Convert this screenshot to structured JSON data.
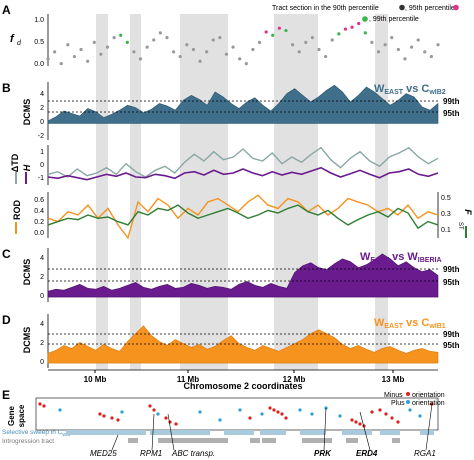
{
  "panels": {
    "A": {
      "label": "A",
      "ylabel": "f",
      "ylabel_sup": "^",
      "ylabel_sub": "d",
      "yticks": [
        "0.0",
        "0.5",
        "1.0"
      ],
      "legend_text_1": "Tract section in the 90th percentile",
      "legend_text_2": ", 95th percentile",
      "legend_text_3": ", 99th percentile"
    },
    "B": {
      "label": "B",
      "ylabel": "DCMS",
      "yticks": [
        "-2",
        "0",
        "2",
        "4"
      ],
      "title_main_1": "W",
      "title_sub_1": "EAST",
      "title_mid": " vs C",
      "title_sub_2": "wIB2",
      "p99": "99th",
      "p95": "95th"
    },
    "TD": {
      "ylabel_1": "ΔTD",
      "ylabel_2": "H",
      "yticks": [
        "-1",
        "0",
        "1"
      ]
    },
    "ROD": {
      "ylabel": "ROD",
      "yticks": [
        "0.0",
        "0.2",
        "0.4",
        "0.6"
      ],
      "y2label": "F",
      "y2label_sub": "ST",
      "y2ticks": [
        "0.1",
        "0.3",
        "0.5"
      ]
    },
    "C": {
      "label": "C",
      "ylabel": "DCMS",
      "yticks": [
        "0",
        "2",
        "4"
      ],
      "title_main_1": "W",
      "title_sub_1": "EAST",
      "title_mid": " vs W",
      "title_sub_2": "IBERIA",
      "p99": "99th",
      "p95": "95th"
    },
    "D": {
      "label": "D",
      "ylabel": "DCMS",
      "yticks": [
        "0",
        "2",
        "4"
      ],
      "title_main_1": "W",
      "title_sub_1": "EAST",
      "title_mid": " vs C",
      "title_sub_2": "wIB1",
      "p99": "99th",
      "p95": "95th"
    },
    "E": {
      "label": "E",
      "ylabel_1": "Gene",
      "ylabel_2": "space",
      "minus_label": "Minus",
      "plus_label": "Plus",
      "orientation_label": "orientation",
      "sweep_label_1": "Selective sweep in C",
      "sweep_label_sub": "wIB",
      "introgression_label": "Introgression tract",
      "genes": [
        "MED25",
        "RPM1",
        "ABC transp.",
        "PRK",
        "ERD4",
        "RGA1"
      ]
    }
  },
  "xaxis": {
    "title": "Chromosome 2 coordinates",
    "ticks": [
      "10 Mb",
      "11 Mb",
      "12 Mb",
      "13 Mb"
    ]
  },
  "colors": {
    "blue": "#3f6f8a",
    "purple": "#6a1b8e",
    "orange": "#f5931e",
    "green": "#2e7d32",
    "grey_line": "#8aa8a6",
    "pink": "#e0338a",
    "dot_green": "#3bb44a",
    "band": "#dcdcdc"
  },
  "chart_data": [
    {
      "type": "scatter",
      "panel": "A",
      "ylabel": "f̂d",
      "ylim": [
        0,
        1.1
      ],
      "series": [
        {
          "values": [
            0.15,
            0.3,
            0.05,
            0.45,
            0.2,
            0.35,
            0.1,
            0.5,
            0.25,
            0.4,
            0.6,
            0.65,
            0.5,
            0.3,
            0.15,
            0.4,
            0.55,
            0.7,
            0.6,
            0.3,
            0.2,
            0.45,
            0.35,
            0.1,
            0.3,
            0.55,
            0.6,
            0.25,
            0.4,
            0.15,
            0.05,
            0.35,
            0.5,
            0.72,
            0.65,
            0.8,
            0.75,
            0.45,
            0.3,
            0.5,
            0.6,
            0.35,
            0.2,
            0.55,
            0.68,
            0.78,
            0.82,
            0.9,
            0.7,
            0.5,
            0.3,
            0.45,
            0.6,
            0.35,
            0.15,
            0.4,
            0.55,
            0.3,
            0.2,
            0.45
          ]
        }
      ]
    },
    {
      "type": "area",
      "panel": "B",
      "ylim": [
        -2,
        5
      ],
      "series": [
        {
          "name": "WEAST vs CwIB2",
          "values": [
            0.3,
            0.8,
            1.5,
            1.2,
            0.9,
            1.8,
            1.4,
            0.7,
            1.1,
            1.6,
            2.2,
            1.9,
            1.3,
            1.7,
            2.4,
            2.1,
            1.6,
            2.8,
            3.4,
            2.9,
            2.2,
            3.8,
            3.2,
            2.4,
            1.8,
            2.6,
            3.1,
            2.2,
            1.5,
            2.4,
            3.6,
            4.2,
            3.4,
            2.6,
            3.2,
            4.0,
            4.6,
            3.8,
            2.6,
            3.4,
            4.4,
            3.8,
            3.0,
            2.2,
            2.8,
            3.6,
            3.2,
            2.0,
            1.6,
            2.4
          ]
        }
      ]
    },
    {
      "type": "line",
      "panel": "DeltaTD / H",
      "ylim": [
        -1.5,
        1.5
      ],
      "series": [
        {
          "name": "ΔTD",
          "values": [
            -0.7,
            -0.5,
            -0.9,
            -0.3,
            -0.8,
            -0.6,
            -0.2,
            -0.7,
            0.1,
            -0.5,
            -0.9,
            -0.4,
            -0.1,
            -0.6,
            0.2,
            0.8,
            0.3,
            1.0,
            0.4,
            0.6,
            1.2,
            0.5,
            0.3,
            0.9,
            0.1,
            0.6,
            0.2,
            0.8,
            1.3,
            0.4,
            -0.2,
            0.5,
            1.0,
            0.3,
            -0.1,
            0.6,
            0.9,
            1.3,
            0.6,
            0.1,
            0.5
          ]
        },
        {
          "name": "H",
          "values": [
            -0.9,
            -1.0,
            -0.8,
            -0.95,
            -1.1,
            -0.9,
            -0.7,
            -0.85,
            -0.6,
            -0.9,
            -0.95,
            -0.7,
            -0.8,
            -1.0,
            -0.6,
            -0.5,
            -0.75,
            -0.4,
            -0.7,
            -0.6,
            -0.3,
            -0.6,
            -0.8,
            -0.5,
            -0.75,
            -0.55,
            -0.7,
            -0.45,
            -0.2,
            -0.6,
            -0.9,
            -0.65,
            -0.4,
            -0.7,
            -0.95,
            -0.6,
            -0.5,
            -0.3,
            -0.7,
            -0.85,
            -0.6
          ]
        }
      ]
    },
    {
      "type": "line",
      "panel": "ROD / FST",
      "ylim": [
        0,
        0.7
      ],
      "series": [
        {
          "name": "ROD",
          "values": [
            0.3,
            0.25,
            0.4,
            0.35,
            0.5,
            0.3,
            0.45,
            0.2,
            0.0,
            0.55,
            0.4,
            0.6,
            0.5,
            0.3,
            0.45,
            0.35,
            0.55,
            0.6,
            0.5,
            0.4,
            0.55,
            0.65,
            0.5,
            0.45,
            0.6,
            0.55,
            0.4,
            0.5,
            0.35,
            0.45,
            0.6,
            0.55,
            0.5,
            0.4,
            0.45,
            0.35,
            0.5,
            0.3,
            0.4,
            0.35
          ]
        },
        {
          "name": "FST",
          "values": [
            0.2,
            0.25,
            0.3,
            0.28,
            0.35,
            0.3,
            0.32,
            0.25,
            0.2,
            0.4,
            0.35,
            0.45,
            0.42,
            0.5,
            0.38,
            0.3,
            0.35,
            0.4,
            0.45,
            0.38,
            0.3,
            0.35,
            0.42,
            0.38,
            0.45,
            0.5,
            0.4,
            0.35,
            0.42,
            0.3,
            0.2,
            0.28,
            0.35,
            0.4,
            0.32,
            0.45,
            0.38,
            0.15,
            0.25,
            0.2
          ]
        }
      ]
    },
    {
      "type": "area",
      "panel": "C",
      "ylim": [
        -0.5,
        5
      ],
      "series": [
        {
          "name": "WEAST vs WIBERIA",
          "values": [
            0.6,
            0.8,
            0.7,
            1.0,
            1.3,
            0.9,
            0.8,
            1.1,
            0.7,
            0.9,
            1.2,
            1.5,
            1.0,
            0.8,
            1.1,
            1.3,
            0.9,
            1.0,
            1.4,
            1.2,
            0.9,
            1.1,
            1.0,
            0.8,
            1.3,
            1.6,
            1.2,
            1.0,
            1.4,
            1.1,
            0.9,
            2.5,
            3.2,
            3.5,
            3.0,
            2.8,
            3.4,
            3.9,
            3.6,
            3.0,
            3.3,
            3.8,
            4.4,
            3.9,
            3.2,
            3.6,
            3.0,
            2.6,
            2.8,
            2.2
          ]
        }
      ]
    },
    {
      "type": "area",
      "panel": "D",
      "ylim": [
        -0.5,
        5
      ],
      "series": [
        {
          "name": "WEAST vs CwIB1",
          "values": [
            1.0,
            1.3,
            1.8,
            1.5,
            2.1,
            1.7,
            1.3,
            1.9,
            1.5,
            1.2,
            2.2,
            3.0,
            3.8,
            2.8,
            2.2,
            1.8,
            2.4,
            2.0,
            1.6,
            1.9,
            1.4,
            1.7,
            2.3,
            2.8,
            2.0,
            1.6,
            1.3,
            1.8,
            1.5,
            1.2,
            1.6,
            2.0,
            2.4,
            3.0,
            3.4,
            3.0,
            2.6,
            1.9,
            1.5,
            1.8,
            1.4,
            1.1,
            1.5,
            1.7,
            1.3,
            1.0,
            1.3,
            1.5,
            1.2,
            1.1
          ]
        }
      ]
    }
  ]
}
